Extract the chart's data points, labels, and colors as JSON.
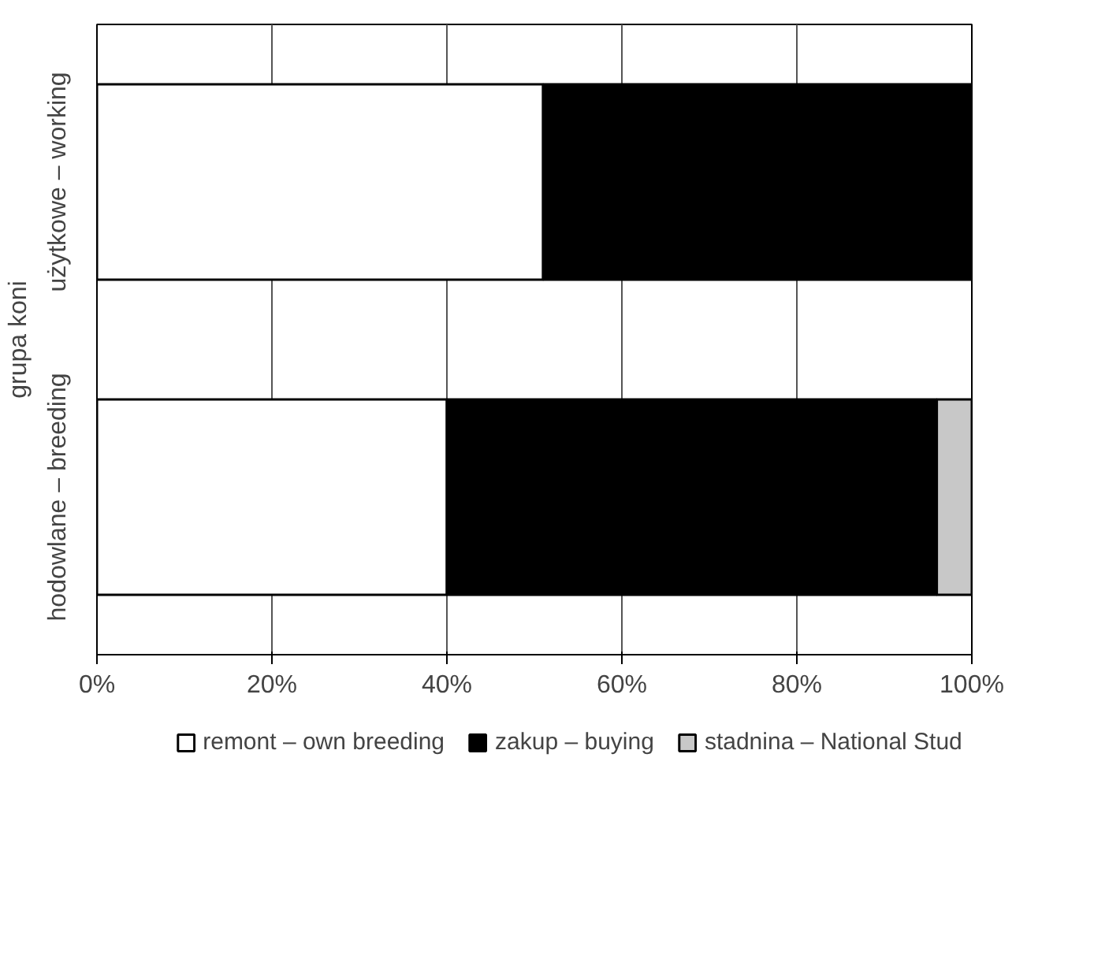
{
  "chart_data": {
    "type": "bar",
    "orientation": "horizontal",
    "stacked": true,
    "ylabel": "grupa koni",
    "categories": [
      "użytkowe – working",
      "hodowlane – breeding"
    ],
    "series": [
      {
        "name": "remont – own breeding",
        "color": "#ffffff",
        "values": [
          51,
          40
        ]
      },
      {
        "name": "zakup – buying",
        "color": "#000000",
        "values": [
          49,
          56
        ]
      },
      {
        "name": "stadnina – National Stud",
        "color": "#c8c8c8",
        "values": [
          0,
          4
        ]
      }
    ],
    "xlim": [
      0,
      100
    ],
    "xticks": [
      {
        "value": 0,
        "label": "0%"
      },
      {
        "value": 20,
        "label": "20%"
      },
      {
        "value": 40,
        "label": "40%"
      },
      {
        "value": 60,
        "label": "60%"
      },
      {
        "value": 80,
        "label": "80%"
      },
      {
        "value": 100,
        "label": "100%"
      }
    ],
    "grid": "x",
    "legend": "bottom"
  }
}
